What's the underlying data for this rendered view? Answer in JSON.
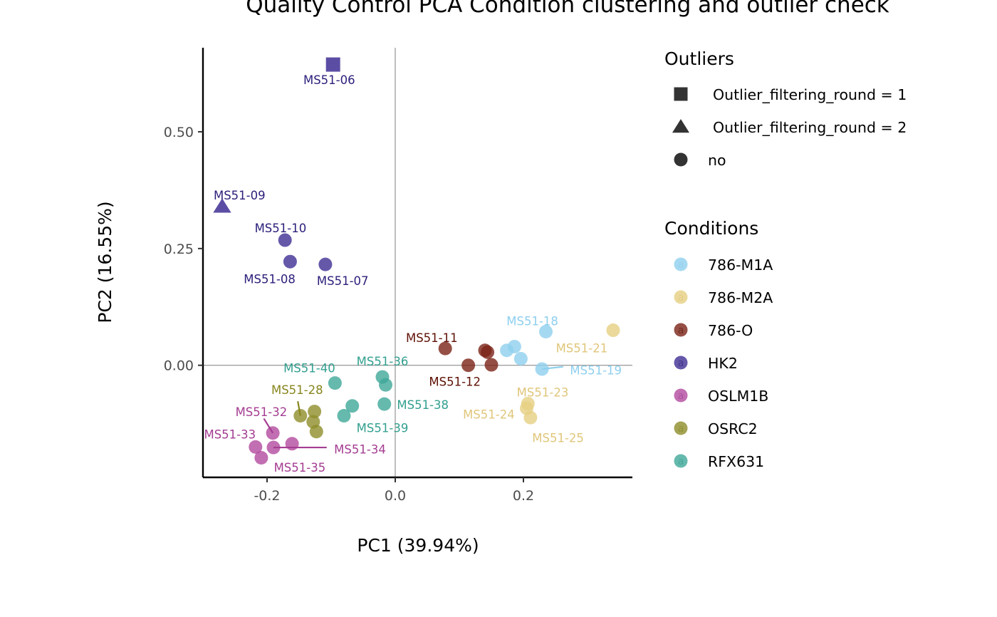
{
  "chart_data": {
    "type": "scatter",
    "title": "Quality Control PCA Condition clustering and outlier check",
    "xlabel": "PC1 (39.94%)",
    "ylabel": "PC2 (16.55%)",
    "xlim": [
      -0.3,
      0.37
    ],
    "ylim": [
      -0.24,
      0.68
    ],
    "xticks": [
      -0.2,
      0.0,
      0.2
    ],
    "xtick_labels": [
      "-0.2",
      "0.0",
      "0.2"
    ],
    "yticks": [
      0.0,
      0.25,
      0.5
    ],
    "ytick_labels": [
      "0.00",
      "0.25",
      "0.50"
    ],
    "reference_lines": {
      "x": 0,
      "y": 0
    },
    "grid": false,
    "condition_colors": {
      "786-M1A": "#8ecfee",
      "786-M2A": "#e6cf82",
      "786-O": "#7a2316",
      "HK2": "#3f2e94",
      "OSLM1B": "#b34a9f",
      "OSRC2": "#8f8d2a",
      "RFX631": "#3ea898"
    },
    "label_colors": {
      "786-M1A": "#8ecfee",
      "786-M2A": "#e0c67a",
      "786-O": "#5e1105",
      "HK2": "#2b1f7a",
      "OSLM1B": "#a43d92",
      "OSRC2": "#88861e",
      "RFX631": "#33a090"
    },
    "points": [
      {
        "x": -0.097,
        "y": 0.644,
        "condition": "HK2",
        "outlier": "Outlier_filtering_round = 1",
        "label": "MS51-06",
        "lx": -0.103,
        "ly": 0.611,
        "anchor": "middle"
      },
      {
        "x": -0.27,
        "y": 0.34,
        "condition": "HK2",
        "outlier": "Outlier_filtering_round = 2",
        "label": "MS51-09",
        "lx": -0.243,
        "ly": 0.364,
        "anchor": "middle"
      },
      {
        "x": -0.172,
        "y": 0.268,
        "condition": "HK2",
        "outlier": "no",
        "label": "MS51-10",
        "lx": -0.179,
        "ly": 0.294,
        "anchor": "middle"
      },
      {
        "x": -0.164,
        "y": 0.222,
        "condition": "HK2",
        "outlier": "no",
        "label": "MS51-08",
        "lx": -0.196,
        "ly": 0.185,
        "anchor": "middle"
      },
      {
        "x": -0.109,
        "y": 0.216,
        "condition": "HK2",
        "outlier": "no",
        "label": "MS51-07",
        "lx": -0.082,
        "ly": 0.181,
        "anchor": "middle"
      },
      {
        "x": 0.235,
        "y": 0.072,
        "condition": "786-M1A",
        "outlier": "no",
        "label": "MS51-18",
        "lx": 0.214,
        "ly": 0.095,
        "anchor": "middle"
      },
      {
        "x": 0.186,
        "y": 0.04,
        "condition": "786-M1A",
        "outlier": "no",
        "label": "",
        "lx": null,
        "ly": null,
        "anchor": "middle"
      },
      {
        "x": 0.174,
        "y": 0.032,
        "condition": "786-M1A",
        "outlier": "no",
        "label": "",
        "lx": null,
        "ly": null,
        "anchor": "middle"
      },
      {
        "x": 0.196,
        "y": 0.014,
        "condition": "786-M1A",
        "outlier": "no",
        "label": "",
        "lx": null,
        "ly": null,
        "anchor": "middle"
      },
      {
        "x": 0.229,
        "y": -0.008,
        "condition": "786-M1A",
        "outlier": "no",
        "label": "MS51-19",
        "lx": 0.313,
        "ly": -0.01,
        "anchor": "middle",
        "segment": [
          0.262,
          -0.003
        ]
      },
      {
        "x": 0.34,
        "y": 0.075,
        "condition": "786-M2A",
        "outlier": "no",
        "label": "MS51-21",
        "lx": 0.291,
        "ly": 0.037,
        "anchor": "middle"
      },
      {
        "x": 0.207,
        "y": -0.082,
        "condition": "786-M2A",
        "outlier": "no",
        "label": "MS51-23",
        "lx": 0.23,
        "ly": -0.058,
        "anchor": "middle"
      },
      {
        "x": 0.205,
        "y": -0.092,
        "condition": "786-M2A",
        "outlier": "no",
        "label": "MS51-24",
        "lx": 0.146,
        "ly": -0.105,
        "anchor": "middle"
      },
      {
        "x": 0.211,
        "y": -0.112,
        "condition": "786-M2A",
        "outlier": "no",
        "label": "MS51-25",
        "lx": 0.254,
        "ly": -0.155,
        "anchor": "middle"
      },
      {
        "x": 0.078,
        "y": 0.036,
        "condition": "786-O",
        "outlier": "no",
        "label": "MS51-11",
        "lx": 0.057,
        "ly": 0.059,
        "anchor": "middle"
      },
      {
        "x": 0.14,
        "y": 0.032,
        "condition": "786-O",
        "outlier": "no",
        "label": "",
        "lx": null,
        "ly": null,
        "anchor": "middle"
      },
      {
        "x": 0.144,
        "y": 0.028,
        "condition": "786-O",
        "outlier": "no",
        "label": "",
        "lx": null,
        "ly": null,
        "anchor": "middle"
      },
      {
        "x": 0.114,
        "y": 0.0,
        "condition": "786-O",
        "outlier": "no",
        "label": "MS51-12",
        "lx": 0.093,
        "ly": -0.035,
        "anchor": "middle"
      },
      {
        "x": 0.15,
        "y": 0.001,
        "condition": "786-O",
        "outlier": "no",
        "label": "",
        "lx": null,
        "ly": null,
        "anchor": "middle"
      },
      {
        "x": -0.094,
        "y": -0.038,
        "condition": "RFX631",
        "outlier": "no",
        "label": "MS51-40",
        "lx": -0.134,
        "ly": -0.006,
        "anchor": "middle"
      },
      {
        "x": -0.02,
        "y": -0.025,
        "condition": "RFX631",
        "outlier": "no",
        "label": "MS51-36",
        "lx": -0.02,
        "ly": 0.009,
        "anchor": "middle"
      },
      {
        "x": -0.015,
        "y": -0.042,
        "condition": "RFX631",
        "outlier": "no",
        "label": "",
        "lx": null,
        "ly": null,
        "anchor": "middle"
      },
      {
        "x": -0.067,
        "y": -0.087,
        "condition": "RFX631",
        "outlier": "no",
        "label": "",
        "lx": null,
        "ly": null,
        "anchor": "middle"
      },
      {
        "x": -0.017,
        "y": -0.083,
        "condition": "RFX631",
        "outlier": "no",
        "label": "MS51-38",
        "lx": 0.043,
        "ly": -0.084,
        "anchor": "middle"
      },
      {
        "x": -0.08,
        "y": -0.108,
        "condition": "RFX631",
        "outlier": "no",
        "label": "MS51-39",
        "lx": -0.02,
        "ly": -0.134,
        "anchor": "middle"
      },
      {
        "x": -0.148,
        "y": -0.108,
        "condition": "OSRC2",
        "outlier": "no",
        "label": "MS51-28",
        "lx": -0.153,
        "ly": -0.052,
        "anchor": "middle",
        "segment": [
          -0.152,
          -0.077
        ]
      },
      {
        "x": -0.126,
        "y": -0.099,
        "condition": "OSRC2",
        "outlier": "no",
        "label": "",
        "lx": null,
        "ly": null,
        "anchor": "middle"
      },
      {
        "x": -0.128,
        "y": -0.121,
        "condition": "OSRC2",
        "outlier": "no",
        "label": "",
        "lx": null,
        "ly": null,
        "anchor": "middle"
      },
      {
        "x": -0.123,
        "y": -0.142,
        "condition": "OSRC2",
        "outlier": "no",
        "label": "",
        "lx": null,
        "ly": null,
        "anchor": "middle"
      },
      {
        "x": -0.191,
        "y": -0.145,
        "condition": "OSLM1B",
        "outlier": "no",
        "label": "MS51-32",
        "lx": -0.209,
        "ly": -0.1,
        "anchor": "middle",
        "segment": [
          -0.205,
          -0.114
        ]
      },
      {
        "x": -0.218,
        "y": -0.175,
        "condition": "OSLM1B",
        "outlier": "no",
        "label": "MS51-33",
        "lx": -0.258,
        "ly": -0.148,
        "anchor": "middle"
      },
      {
        "x": -0.19,
        "y": -0.176,
        "condition": "OSLM1B",
        "outlier": "no",
        "label": "MS51-34",
        "lx": -0.055,
        "ly": -0.18,
        "anchor": "middle",
        "segment": [
          -0.107,
          -0.176
        ]
      },
      {
        "x": -0.161,
        "y": -0.168,
        "condition": "OSLM1B",
        "outlier": "no",
        "label": "",
        "lx": null,
        "ly": null,
        "anchor": "middle"
      },
      {
        "x": -0.209,
        "y": -0.198,
        "condition": "OSLM1B",
        "outlier": "no",
        "label": "MS51-35",
        "lx": -0.149,
        "ly": -0.219,
        "anchor": "middle"
      }
    ],
    "legend": {
      "placement": "right",
      "outliers": {
        "title": "Outliers",
        "items": [
          {
            "label": "Outlier_filtering_round = 1",
            "shape": "square"
          },
          {
            "label": "Outlier_filtering_round = 2",
            "shape": "triangle"
          },
          {
            "label": "no",
            "shape": "circle"
          }
        ]
      },
      "conditions": {
        "title": "Conditions",
        "key_glyph": "a",
        "items": [
          "786-M1A",
          "786-M2A",
          "786-O",
          "HK2",
          "OSLM1B",
          "OSRC2",
          "RFX631"
        ]
      }
    }
  }
}
